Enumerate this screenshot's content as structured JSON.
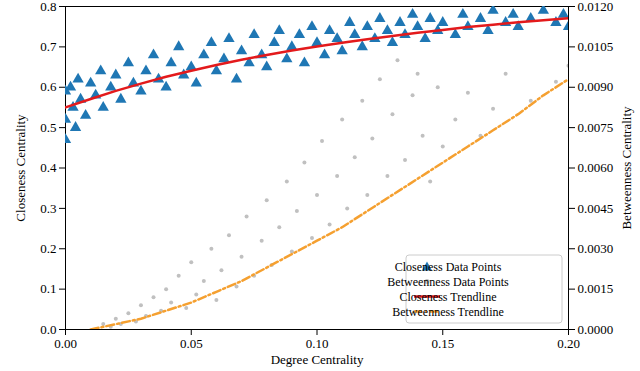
{
  "chart_data": {
    "type": "scatter",
    "x_label": "Degree Centrality",
    "y_label": "Closeness Centrality",
    "y2_label": "Betweenness Centrality",
    "xlim": [
      0,
      0.2
    ],
    "xticks": [
      {
        "value": 0,
        "label": "0.00"
      },
      0.05,
      {
        "value": 0.1,
        "label": "0.10"
      },
      0.15,
      {
        "value": 0.2,
        "label": "0.20"
      }
    ],
    "ylim": [
      0,
      0.8
    ],
    "yticks": [
      {
        "value": 0,
        "label": "0.0"
      },
      0.1,
      0.2,
      0.3,
      0.4,
      0.5,
      0.6,
      0.7,
      0.8
    ],
    "y2lim": [
      0,
      0.012
    ],
    "y2ticks": [
      {
        "value": 0,
        "label": "0.0000"
      },
      0.0015,
      {
        "value": 0.003,
        "label": "0.0030"
      },
      0.0045,
      {
        "value": 0.006,
        "label": "0.0060"
      },
      0.0075,
      {
        "value": 0.009,
        "label": "0.0090"
      },
      0.0105,
      {
        "value": 0.012,
        "label": "0.0120"
      }
    ],
    "grid": false,
    "legend": "lower right",
    "series": [
      {
        "name": "Closeness Data Points",
        "type": "scatter",
        "marker": "triangle",
        "color": "#1f77b4",
        "x": [
          0.0,
          0.0,
          0.0,
          0.002,
          0.003,
          0.004,
          0.005,
          0.006,
          0.008,
          0.01,
          0.012,
          0.014,
          0.015,
          0.018,
          0.02,
          0.022,
          0.025,
          0.027,
          0.03,
          0.032,
          0.035,
          0.037,
          0.04,
          0.042,
          0.045,
          0.047,
          0.05,
          0.052,
          0.055,
          0.058,
          0.06,
          0.063,
          0.065,
          0.068,
          0.07,
          0.073,
          0.075,
          0.078,
          0.08,
          0.083,
          0.085,
          0.088,
          0.09,
          0.093,
          0.095,
          0.098,
          0.1,
          0.103,
          0.105,
          0.108,
          0.11,
          0.113,
          0.115,
          0.118,
          0.12,
          0.123,
          0.125,
          0.128,
          0.13,
          0.133,
          0.135,
          0.138,
          0.14,
          0.143,
          0.145,
          0.148,
          0.15,
          0.155,
          0.158,
          0.16,
          0.165,
          0.168,
          0.17,
          0.175,
          0.178,
          0.18,
          0.185,
          0.19,
          0.195,
          0.198,
          0.2
        ],
        "values": [
          0.59,
          0.52,
          0.47,
          0.6,
          0.55,
          0.5,
          0.62,
          0.57,
          0.53,
          0.61,
          0.58,
          0.64,
          0.55,
          0.6,
          0.63,
          0.57,
          0.66,
          0.61,
          0.59,
          0.64,
          0.68,
          0.62,
          0.6,
          0.66,
          0.7,
          0.63,
          0.65,
          0.61,
          0.68,
          0.71,
          0.64,
          0.67,
          0.72,
          0.62,
          0.69,
          0.66,
          0.73,
          0.68,
          0.65,
          0.71,
          0.74,
          0.67,
          0.7,
          0.73,
          0.66,
          0.75,
          0.71,
          0.68,
          0.74,
          0.72,
          0.69,
          0.76,
          0.73,
          0.7,
          0.75,
          0.72,
          0.77,
          0.74,
          0.71,
          0.76,
          0.73,
          0.78,
          0.75,
          0.72,
          0.77,
          0.74,
          0.76,
          0.73,
          0.78,
          0.75,
          0.77,
          0.74,
          0.79,
          0.76,
          0.78,
          0.75,
          0.77,
          0.79,
          0.76,
          0.78,
          0.75
        ]
      },
      {
        "name": "Betweenness Data Points",
        "type": "scatter",
        "marker": "circle",
        "color": "#c0c0c0",
        "axis": "y2",
        "x": [
          0.012,
          0.015,
          0.018,
          0.02,
          0.022,
          0.025,
          0.028,
          0.03,
          0.032,
          0.035,
          0.038,
          0.04,
          0.042,
          0.045,
          0.048,
          0.05,
          0.052,
          0.055,
          0.058,
          0.06,
          0.062,
          0.065,
          0.068,
          0.07,
          0.072,
          0.075,
          0.078,
          0.08,
          0.082,
          0.085,
          0.088,
          0.09,
          0.092,
          0.095,
          0.098,
          0.1,
          0.102,
          0.105,
          0.108,
          0.11,
          0.112,
          0.115,
          0.118,
          0.12,
          0.122,
          0.125,
          0.128,
          0.13,
          0.132,
          0.135,
          0.138,
          0.14,
          0.142,
          0.145,
          0.148,
          0.15,
          0.155,
          0.16,
          0.165,
          0.17,
          0.175,
          0.185,
          0.195,
          0.2
        ],
        "values": [
          0.0,
          0.0002,
          0.0001,
          0.0004,
          0.0002,
          0.0006,
          0.0003,
          0.0009,
          0.0005,
          0.0012,
          0.0007,
          0.0015,
          0.001,
          0.002,
          0.0008,
          0.0025,
          0.0013,
          0.0018,
          0.003,
          0.0011,
          0.0022,
          0.0035,
          0.0016,
          0.0027,
          0.0042,
          0.002,
          0.0033,
          0.0048,
          0.0024,
          0.0038,
          0.0055,
          0.0029,
          0.0044,
          0.0062,
          0.0034,
          0.005,
          0.007,
          0.0039,
          0.0057,
          0.0078,
          0.0045,
          0.0064,
          0.0085,
          0.005,
          0.0071,
          0.0093,
          0.0057,
          0.008,
          0.01,
          0.0063,
          0.0087,
          0.0095,
          0.0072,
          0.0055,
          0.009,
          0.0068,
          0.0078,
          0.0088,
          0.0072,
          0.0082,
          0.0095,
          0.0085,
          0.0092,
          0.0098
        ]
      },
      {
        "name": "Closeness Trendline",
        "type": "line",
        "line_style": "solid",
        "color": "#e31a1c",
        "x": [
          0,
          0.01,
          0.02,
          0.03,
          0.04,
          0.05,
          0.06,
          0.07,
          0.08,
          0.09,
          0.1,
          0.11,
          0.12,
          0.13,
          0.14,
          0.15,
          0.16,
          0.17,
          0.18,
          0.19,
          0.2
        ],
        "values": [
          0.55,
          0.571,
          0.591,
          0.609,
          0.626,
          0.641,
          0.655,
          0.668,
          0.68,
          0.691,
          0.701,
          0.71,
          0.719,
          0.727,
          0.735,
          0.742,
          0.749,
          0.755,
          0.761,
          0.766,
          0.771
        ]
      },
      {
        "name": "Betweenness Trendline",
        "type": "line",
        "line_style": "dashdot",
        "color": "#f5a030",
        "axis": "y2",
        "x": [
          0.01,
          0.02,
          0.03,
          0.04,
          0.05,
          0.06,
          0.07,
          0.08,
          0.09,
          0.1,
          0.11,
          0.12,
          0.13,
          0.14,
          0.15,
          0.16,
          0.17,
          0.18,
          0.19,
          0.2
        ],
        "values": [
          0,
          0.0002,
          0.0004,
          0.0007,
          0.001,
          0.0014,
          0.0018,
          0.0023,
          0.0028,
          0.0033,
          0.0038,
          0.0044,
          0.005,
          0.0056,
          0.0062,
          0.0068,
          0.0074,
          0.008,
          0.0087,
          0.0093
        ]
      }
    ]
  }
}
